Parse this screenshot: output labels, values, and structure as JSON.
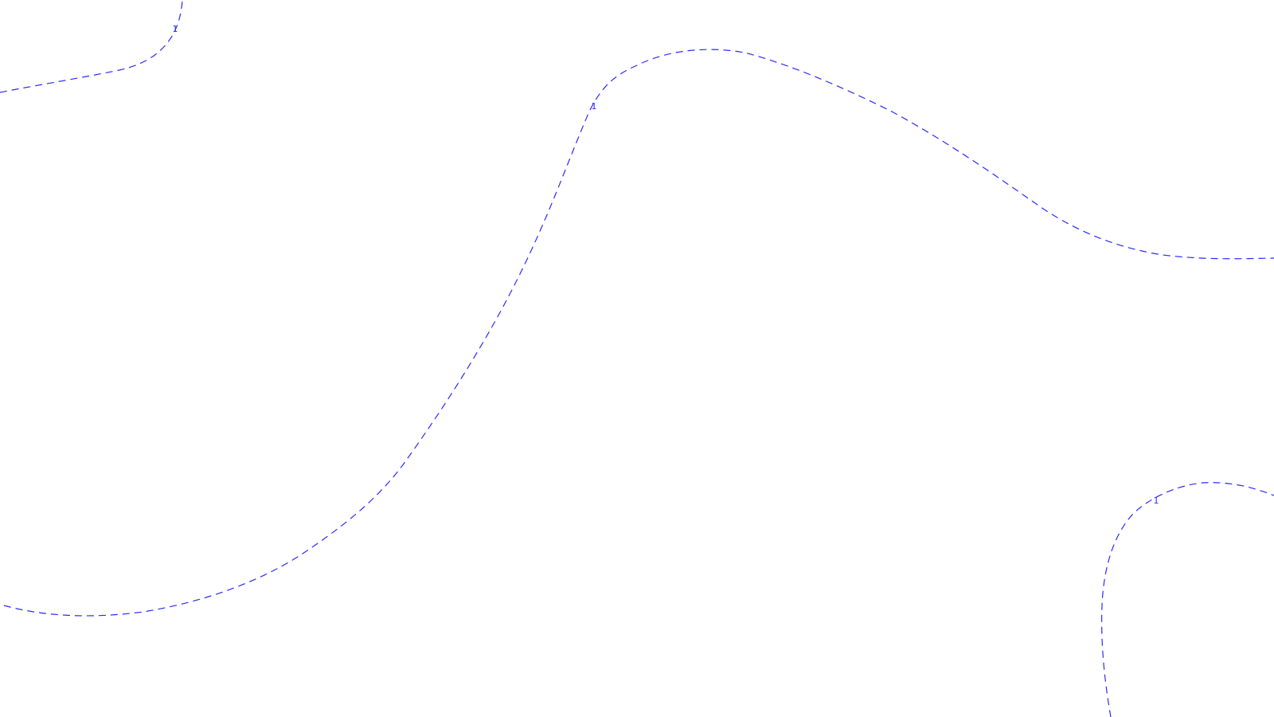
{
  "diagram": {
    "line_color": "#2b2bff",
    "background_color": "#ffffff",
    "line_style": "dashed",
    "contours": [
      {
        "level_label": "1"
      },
      {
        "level_label": "1"
      },
      {
        "level_label": "1"
      }
    ]
  }
}
